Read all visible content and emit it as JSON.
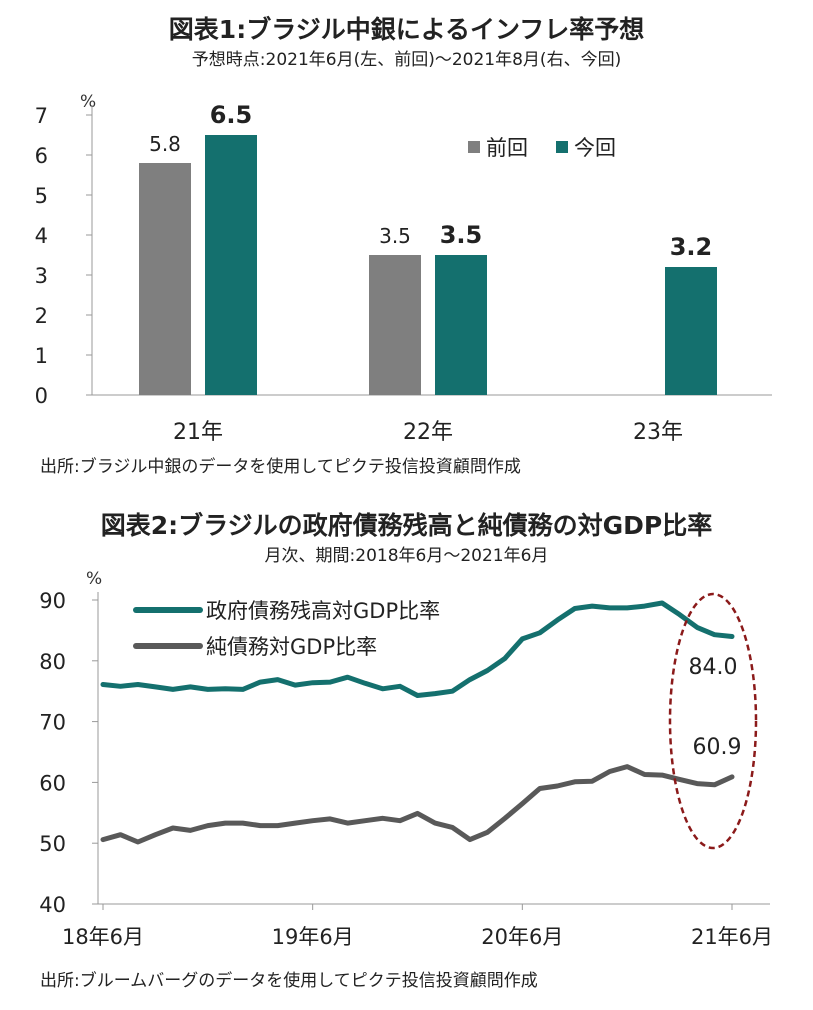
{
  "chart1": {
    "title": "図表1:ブラジル中銀によるインフレ率予想",
    "subtitle": "予想時点:2021年6月(左、前回)〜2021年8月(右、今回)",
    "source": "出所:ブラジル中銀のデータを使用してピクテ投信投資顧問作成",
    "unit": "%"
  },
  "chart2": {
    "title": "図表2:ブラジルの政府債務残高と純債務の対GDP比率",
    "subtitle": "月次、期間:2018年6月〜2021年6月",
    "source": "出所:ブルームバーグのデータを使用してピクテ投信投資顧問作成",
    "unit": "%",
    "annotations": [
      "84.0",
      "60.9"
    ]
  },
  "chart_data": [
    {
      "type": "bar",
      "categories": [
        "21年",
        "22年",
        "23年"
      ],
      "series": [
        {
          "name": "前回",
          "color": "#7f7f7f",
          "values": [
            5.8,
            3.5,
            null
          ],
          "labels": [
            "5.8",
            "3.5",
            ""
          ]
        },
        {
          "name": "今回",
          "color": "#14706e",
          "values": [
            6.5,
            3.5,
            3.2
          ],
          "labels": [
            "6.5",
            "3.5",
            "3.2"
          ]
        }
      ],
      "ylim": [
        0,
        7
      ],
      "yticks": [
        0,
        1,
        2,
        3,
        4,
        5,
        6,
        7
      ],
      "ylabel": "%",
      "legend": "top-right",
      "grid": false
    },
    {
      "type": "line",
      "x": [
        "2018-06",
        "2018-07",
        "2018-08",
        "2018-09",
        "2018-10",
        "2018-11",
        "2018-12",
        "2019-01",
        "2019-02",
        "2019-03",
        "2019-04",
        "2019-05",
        "2019-06",
        "2019-07",
        "2019-08",
        "2019-09",
        "2019-10",
        "2019-11",
        "2019-12",
        "2020-01",
        "2020-02",
        "2020-03",
        "2020-04",
        "2020-05",
        "2020-06",
        "2020-07",
        "2020-08",
        "2020-09",
        "2020-10",
        "2020-11",
        "2020-12",
        "2021-01",
        "2021-02",
        "2021-03",
        "2021-04",
        "2021-05",
        "2021-06"
      ],
      "xtick_labels": [
        "18年6月",
        "19年6月",
        "20年6月",
        "21年6月"
      ],
      "xtick_positions": [
        "2018-06",
        "2019-06",
        "2020-06",
        "2021-06"
      ],
      "series": [
        {
          "name": "政府債務残高対GDP比率",
          "color": "#14706e",
          "values": [
            76.1,
            75.8,
            76.1,
            75.7,
            75.3,
            75.7,
            75.3,
            75.4,
            75.3,
            76.5,
            76.9,
            76.0,
            76.4,
            76.5,
            77.3,
            76.3,
            75.4,
            75.8,
            74.3,
            74.6,
            75.0,
            76.9,
            78.4,
            80.4,
            83.6,
            84.6,
            86.7,
            88.6,
            89.0,
            88.7,
            88.7,
            89.0,
            89.5,
            87.6,
            85.5,
            84.3,
            84.0
          ]
        },
        {
          "name": "純債務対GDP比率",
          "color": "#595959",
          "values": [
            50.6,
            51.4,
            50.2,
            51.4,
            52.5,
            52.1,
            52.9,
            53.3,
            53.3,
            52.9,
            52.9,
            53.3,
            53.7,
            54.0,
            53.3,
            53.7,
            54.1,
            53.7,
            54.9,
            53.3,
            52.6,
            50.6,
            51.8,
            54.1,
            56.5,
            59.0,
            59.4,
            60.1,
            60.2,
            61.8,
            62.6,
            61.3,
            61.2,
            60.5,
            59.8,
            59.6,
            60.9
          ]
        }
      ],
      "ylim": [
        40,
        90
      ],
      "yticks": [
        40,
        50,
        60,
        70,
        80,
        90
      ],
      "ylabel": "%",
      "legend": "top-left",
      "grid": false
    }
  ]
}
